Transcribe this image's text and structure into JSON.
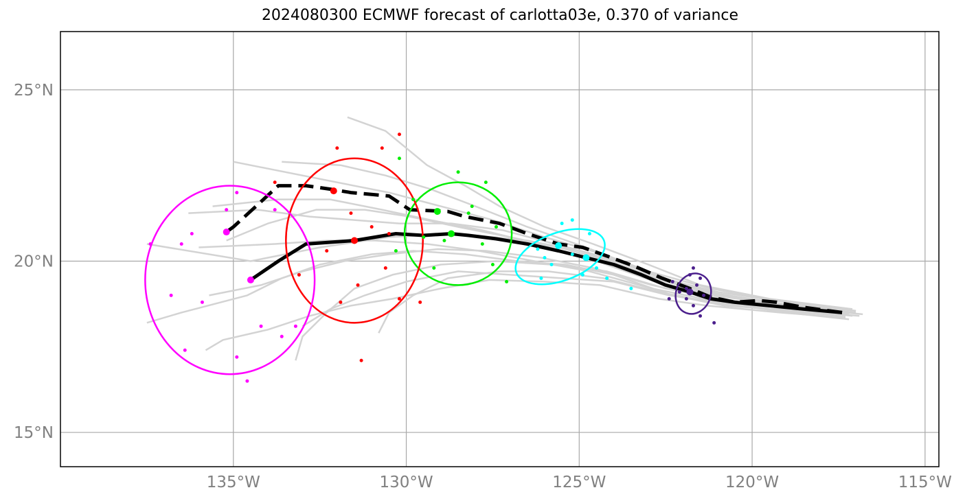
{
  "chart_data": {
    "type": "scatter",
    "title": "2024080300 ECMWF forecast of carlotta03e, 0.370 of variance",
    "xlim": [
      -140,
      -114.6
    ],
    "ylim": [
      14,
      26.7
    ],
    "x_ticks": [
      -135,
      -130,
      -125,
      -120,
      -115
    ],
    "x_tick_labels": [
      "135°W",
      "130°W",
      "125°W",
      "120°W",
      "115°W"
    ],
    "y_ticks": [
      15,
      20,
      25
    ],
    "y_tick_labels": [
      "15°N",
      "20°N",
      "25°N"
    ],
    "grid": true,
    "colors": {
      "ensemble": "#d3d3d3",
      "mean_track": "#000000",
      "t1": "#4b1f8c",
      "t2": "#00ffff",
      "t3": "#00ee00",
      "t4": "#ff0000",
      "t5": "#ff00ff"
    },
    "mean_track": [
      [
        -117.4,
        18.5
      ],
      [
        -118.5,
        18.6
      ],
      [
        -119.5,
        18.7
      ],
      [
        -120.5,
        18.8
      ],
      [
        -121.2,
        18.9
      ],
      [
        -121.8,
        19.1
      ],
      [
        -122.5,
        19.3
      ],
      [
        -123.2,
        19.6
      ],
      [
        -124.0,
        19.9
      ],
      [
        -124.8,
        20.1
      ],
      [
        -125.6,
        20.3
      ],
      [
        -126.5,
        20.5
      ],
      [
        -127.4,
        20.65
      ],
      [
        -128.2,
        20.75
      ],
      [
        -128.7,
        20.8
      ],
      [
        -129.5,
        20.75
      ],
      [
        -130.3,
        20.8
      ],
      [
        -131.5,
        20.6
      ],
      [
        -132.9,
        20.5
      ],
      [
        -133.7,
        20.0
      ],
      [
        -134.5,
        19.45
      ]
    ],
    "control_track": [
      [
        -117.4,
        18.5
      ],
      [
        -118.5,
        18.65
      ],
      [
        -119.3,
        18.8
      ],
      [
        -119.8,
        18.85
      ],
      [
        -120.5,
        18.8
      ],
      [
        -121.2,
        18.95
      ],
      [
        -121.8,
        19.2
      ],
      [
        -122.6,
        19.5
      ],
      [
        -123.4,
        19.85
      ],
      [
        -124.2,
        20.15
      ],
      [
        -124.9,
        20.4
      ],
      [
        -125.6,
        20.5
      ],
      [
        -126.5,
        20.8
      ],
      [
        -127.3,
        21.1
      ],
      [
        -128.3,
        21.3
      ],
      [
        -128.8,
        21.45
      ],
      [
        -129.9,
        21.5
      ],
      [
        -130.5,
        21.9
      ],
      [
        -131.6,
        22.0
      ],
      [
        -132.2,
        22.1
      ],
      [
        -132.9,
        22.2
      ],
      [
        -133.7,
        22.2
      ],
      [
        -134.4,
        21.55
      ],
      [
        -135.0,
        21.0
      ],
      [
        -135.2,
        20.85
      ]
    ],
    "ensemble_tracks": [
      [
        [
          -116.8,
          18.45
        ],
        [
          -118.5,
          18.6
        ],
        [
          -120.5,
          18.8
        ],
        [
          -122.0,
          19.3
        ],
        [
          -123.6,
          19.9
        ],
        [
          -125.0,
          20.3
        ],
        [
          -126.5,
          20.6
        ],
        [
          -128.5,
          20.8
        ],
        [
          -130.5,
          20.7
        ],
        [
          -132.5,
          20.4
        ],
        [
          -134.5,
          20.0
        ],
        [
          -137.5,
          20.5
        ]
      ],
      [
        [
          -117.0,
          18.55
        ],
        [
          -119.0,
          18.8
        ],
        [
          -121.0,
          19.1
        ],
        [
          -122.6,
          19.5
        ],
        [
          -124.3,
          20.2
        ],
        [
          -126.0,
          20.7
        ],
        [
          -127.5,
          21.2
        ],
        [
          -129.0,
          21.6
        ],
        [
          -130.5,
          22.0
        ],
        [
          -132.0,
          22.3
        ],
        [
          -134.0,
          22.7
        ],
        [
          -135.0,
          22.9
        ]
      ],
      [
        [
          -117.2,
          18.3
        ],
        [
          -119.0,
          18.5
        ],
        [
          -121.0,
          18.8
        ],
        [
          -122.4,
          19.0
        ],
        [
          -124.0,
          19.4
        ],
        [
          -125.5,
          19.5
        ],
        [
          -127.0,
          19.6
        ],
        [
          -128.5,
          19.7
        ],
        [
          -130.0,
          19.4
        ],
        [
          -131.2,
          19.0
        ],
        [
          -132.2,
          18.6
        ],
        [
          -133.0,
          18.1
        ]
      ],
      [
        [
          -117.1,
          18.6
        ],
        [
          -119.5,
          18.9
        ],
        [
          -121.5,
          19.3
        ],
        [
          -123.0,
          19.9
        ],
        [
          -124.6,
          20.5
        ],
        [
          -126.0,
          21.0
        ],
        [
          -127.3,
          21.6
        ],
        [
          -128.3,
          22.2
        ],
        [
          -129.4,
          22.8
        ],
        [
          -130.0,
          23.3
        ],
        [
          -130.6,
          23.8
        ],
        [
          -131.7,
          24.2
        ]
      ],
      [
        [
          -116.9,
          18.4
        ],
        [
          -118.8,
          18.55
        ],
        [
          -120.8,
          18.7
        ],
        [
          -122.3,
          19.0
        ],
        [
          -124.0,
          19.6
        ],
        [
          -125.4,
          19.9
        ],
        [
          -126.8,
          20.0
        ],
        [
          -128.3,
          20.2
        ],
        [
          -129.8,
          20.3
        ],
        [
          -131.0,
          20.2
        ],
        [
          -132.5,
          19.9
        ],
        [
          -133.6,
          19.5
        ],
        [
          -134.6,
          19.0
        ],
        [
          -136.5,
          18.5
        ],
        [
          -137.5,
          18.2
        ]
      ],
      [
        [
          -117.3,
          18.35
        ],
        [
          -119.2,
          18.5
        ],
        [
          -121.3,
          18.7
        ],
        [
          -122.7,
          18.9
        ],
        [
          -124.4,
          19.3
        ],
        [
          -126.0,
          19.4
        ],
        [
          -127.6,
          19.45
        ],
        [
          -129.0,
          19.2
        ],
        [
          -130.4,
          18.9
        ],
        [
          -131.6,
          18.7
        ],
        [
          -132.8,
          18.4
        ],
        [
          -134.0,
          18.0
        ],
        [
          -135.3,
          17.7
        ],
        [
          -135.8,
          17.4
        ]
      ],
      [
        [
          -117.0,
          18.5
        ],
        [
          -119.1,
          18.7
        ],
        [
          -121.1,
          19.0
        ],
        [
          -122.8,
          19.4
        ],
        [
          -124.5,
          20.0
        ],
        [
          -126.2,
          20.5
        ],
        [
          -127.8,
          20.9
        ],
        [
          -129.3,
          21.2
        ],
        [
          -130.7,
          21.5
        ],
        [
          -132.2,
          21.8
        ],
        [
          -133.7,
          21.8
        ],
        [
          -135.6,
          21.6
        ]
      ],
      [
        [
          -117.2,
          18.45
        ],
        [
          -119.4,
          18.6
        ],
        [
          -121.4,
          18.9
        ],
        [
          -122.9,
          19.2
        ],
        [
          -124.7,
          19.7
        ],
        [
          -126.3,
          20.0
        ],
        [
          -127.9,
          20.3
        ],
        [
          -129.4,
          20.5
        ],
        [
          -130.9,
          20.6
        ],
        [
          -132.3,
          20.6
        ],
        [
          -133.8,
          20.5
        ],
        [
          -136.0,
          20.4
        ]
      ],
      [
        [
          -117.4,
          18.6
        ],
        [
          -119.6,
          18.9
        ],
        [
          -121.2,
          19.2
        ],
        [
          -123.0,
          19.7
        ],
        [
          -124.8,
          20.4
        ],
        [
          -126.5,
          21.0
        ],
        [
          -128.0,
          21.6
        ],
        [
          -129.3,
          22.1
        ],
        [
          -130.6,
          22.5
        ],
        [
          -131.9,
          22.8
        ],
        [
          -133.6,
          22.9
        ]
      ],
      [
        [
          -117.1,
          18.4
        ],
        [
          -119.0,
          18.6
        ],
        [
          -120.9,
          18.9
        ],
        [
          -122.5,
          19.2
        ],
        [
          -124.2,
          19.7
        ],
        [
          -125.8,
          19.9
        ],
        [
          -127.4,
          20.0
        ],
        [
          -129.0,
          19.9
        ],
        [
          -130.4,
          19.6
        ],
        [
          -131.5,
          19.2
        ],
        [
          -132.3,
          18.5
        ],
        [
          -133.0,
          17.8
        ],
        [
          -133.2,
          17.1
        ]
      ],
      [
        [
          -117.5,
          18.5
        ],
        [
          -119.3,
          18.65
        ],
        [
          -121.3,
          18.95
        ],
        [
          -122.9,
          19.3
        ],
        [
          -124.6,
          19.8
        ],
        [
          -126.1,
          20.1
        ],
        [
          -127.7,
          20.3
        ],
        [
          -129.1,
          20.35
        ],
        [
          -130.5,
          20.2
        ],
        [
          -131.8,
          20.0
        ],
        [
          -133.0,
          19.7
        ],
        [
          -134.2,
          19.3
        ],
        [
          -135.7,
          19.0
        ]
      ],
      [
        [
          -117.0,
          18.55
        ],
        [
          -119.1,
          18.75
        ],
        [
          -121.0,
          19.05
        ],
        [
          -122.6,
          19.5
        ],
        [
          -124.2,
          20.1
        ],
        [
          -125.7,
          20.5
        ],
        [
          -127.2,
          20.9
        ],
        [
          -128.7,
          21.1
        ],
        [
          -130.2,
          21.1
        ],
        [
          -131.5,
          21.2
        ],
        [
          -132.8,
          21.3
        ],
        [
          -134.3,
          21.5
        ],
        [
          -136.3,
          21.4
        ]
      ],
      [
        [
          -117.3,
          18.4
        ],
        [
          -119.2,
          18.55
        ],
        [
          -121.2,
          18.8
        ],
        [
          -122.7,
          19.1
        ],
        [
          -124.3,
          19.5
        ],
        [
          -125.9,
          19.7
        ],
        [
          -127.3,
          19.7
        ],
        [
          -128.8,
          19.5
        ],
        [
          -129.8,
          19.0
        ],
        [
          -130.5,
          18.5
        ],
        [
          -130.8,
          17.9
        ]
      ],
      [
        [
          -117.2,
          18.5
        ],
        [
          -119.0,
          18.7
        ],
        [
          -120.9,
          19.0
        ],
        [
          -122.5,
          19.4
        ],
        [
          -124.1,
          20.0
        ],
        [
          -125.6,
          20.4
        ],
        [
          -127.0,
          20.7
        ],
        [
          -128.5,
          21.0
        ],
        [
          -129.9,
          21.3
        ],
        [
          -131.2,
          21.5
        ],
        [
          -132.6,
          21.5
        ],
        [
          -134.0,
          21.1
        ],
        [
          -135.2,
          20.6
        ]
      ]
    ],
    "ellipses": [
      {
        "name": "t1",
        "cx": -121.7,
        "cy": 19.05,
        "rx": 0.5,
        "ry": 0.6,
        "angle": -20
      },
      {
        "name": "t2",
        "cx": -125.55,
        "cy": 20.13,
        "rx": 1.35,
        "ry": 0.7,
        "angle": 20
      },
      {
        "name": "t3",
        "cx": -128.5,
        "cy": 20.8,
        "rx": 1.55,
        "ry": 1.5,
        "angle": 0
      },
      {
        "name": "t4",
        "cx": -131.5,
        "cy": 20.6,
        "rx": 1.98,
        "ry": 2.4,
        "angle": 0
      },
      {
        "name": "t5",
        "cx": -135.1,
        "cy": 19.45,
        "rx": 2.45,
        "ry": 2.75,
        "angle": 0
      }
    ],
    "member_points": [
      {
        "series": "t1",
        "points": [
          [
            -121.9,
            19.2
          ],
          [
            -121.5,
            19.5
          ],
          [
            -121.7,
            19.8
          ],
          [
            -121.8,
            19.6
          ],
          [
            -121.4,
            19.0
          ],
          [
            -121.5,
            18.4
          ],
          [
            -121.7,
            18.7
          ],
          [
            -121.1,
            18.2
          ],
          [
            -122.1,
            19.1
          ],
          [
            -122.4,
            18.9
          ],
          [
            -122.3,
            19.4
          ],
          [
            -121.6,
            19.3
          ],
          [
            -121.9,
            18.9
          ]
        ]
      },
      {
        "series": "t2",
        "points": [
          [
            -125.6,
            20.45
          ],
          [
            -125.2,
            20.2
          ],
          [
            -126.0,
            20.1
          ],
          [
            -125.5,
            21.1
          ],
          [
            -124.5,
            19.8
          ],
          [
            -124.9,
            19.6
          ],
          [
            -124.2,
            19.5
          ],
          [
            -123.5,
            19.2
          ],
          [
            -126.2,
            20.35
          ],
          [
            -125.8,
            19.9
          ],
          [
            -124.7,
            20.8
          ],
          [
            -126.1,
            19.5
          ],
          [
            -125.2,
            21.2
          ]
        ]
      },
      {
        "series": "t3",
        "points": [
          [
            -129.1,
            21.45
          ],
          [
            -128.7,
            20.8
          ],
          [
            -128.5,
            22.6
          ],
          [
            -127.7,
            22.3
          ],
          [
            -128.2,
            21.4
          ],
          [
            -127.4,
            21.0
          ],
          [
            -127.8,
            20.5
          ],
          [
            -129.5,
            20.7
          ],
          [
            -129.8,
            21.8
          ],
          [
            -130.3,
            20.3
          ],
          [
            -129.2,
            19.8
          ],
          [
            -127.1,
            19.4
          ],
          [
            -127.5,
            19.9
          ],
          [
            -130.2,
            23.0
          ],
          [
            -128.9,
            20.6
          ],
          [
            -128.1,
            21.6
          ]
        ]
      },
      {
        "series": "t4",
        "points": [
          [
            -131.5,
            20.6
          ],
          [
            -132.1,
            22.05
          ],
          [
            -132.0,
            23.3
          ],
          [
            -130.7,
            23.3
          ],
          [
            -130.2,
            23.7
          ],
          [
            -131.0,
            21.0
          ],
          [
            -130.5,
            20.8
          ],
          [
            -132.3,
            20.3
          ],
          [
            -133.1,
            19.6
          ],
          [
            -131.4,
            19.3
          ],
          [
            -131.9,
            18.8
          ],
          [
            -131.3,
            17.1
          ],
          [
            -130.2,
            18.9
          ],
          [
            -129.6,
            18.8
          ],
          [
            -130.6,
            19.8
          ],
          [
            -133.8,
            22.3
          ],
          [
            -131.6,
            21.4
          ]
        ]
      },
      {
        "series": "t5",
        "points": [
          [
            -135.2,
            20.85
          ],
          [
            -134.5,
            19.45
          ],
          [
            -137.4,
            20.5
          ],
          [
            -136.5,
            20.5
          ],
          [
            -135.2,
            21.5
          ],
          [
            -133.8,
            21.5
          ],
          [
            -134.9,
            22.0
          ],
          [
            -136.2,
            20.8
          ],
          [
            -136.8,
            19.0
          ],
          [
            -135.9,
            18.8
          ],
          [
            -134.2,
            18.1
          ],
          [
            -133.6,
            17.8
          ],
          [
            -134.9,
            17.2
          ],
          [
            -134.6,
            16.5
          ],
          [
            -136.4,
            17.4
          ],
          [
            -133.2,
            18.1
          ]
        ]
      }
    ],
    "big_points": [
      {
        "series": "t1",
        "points": [
          [
            -121.8,
            19.1
          ]
        ]
      },
      {
        "series": "t2",
        "points": [
          [
            -125.6,
            20.45
          ],
          [
            -124.8,
            20.1
          ]
        ]
      },
      {
        "series": "t3",
        "points": [
          [
            -129.1,
            21.45
          ],
          [
            -128.7,
            20.8
          ]
        ]
      },
      {
        "series": "t4",
        "points": [
          [
            -132.1,
            22.05
          ],
          [
            -131.5,
            20.6
          ]
        ]
      },
      {
        "series": "t5",
        "points": [
          [
            -135.2,
            20.85
          ],
          [
            -134.5,
            19.45
          ]
        ]
      }
    ]
  }
}
